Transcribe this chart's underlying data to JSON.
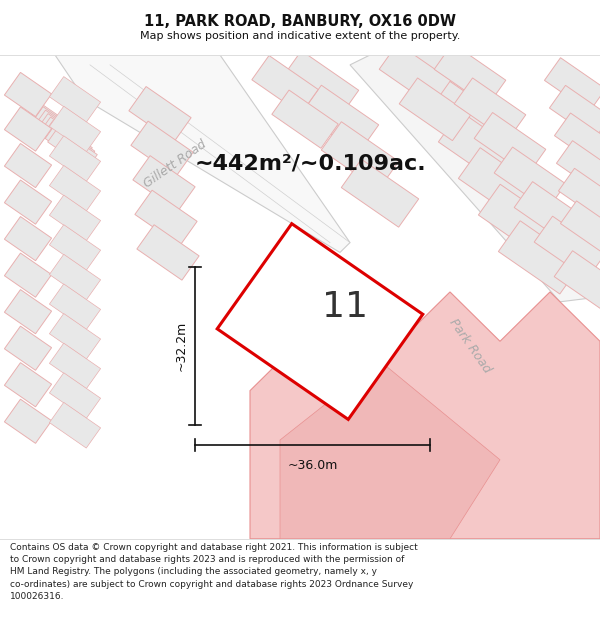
{
  "title": "11, PARK ROAD, BANBURY, OX16 0DW",
  "subtitle": "Map shows position and indicative extent of the property.",
  "area_label": "~442m²/~0.109ac.",
  "dim_width": "~36.0m",
  "dim_height": "~32.2m",
  "plot_number": "11",
  "road_label1": "Gillett Road",
  "road_label2": "Park Road",
  "copyright": "Contains OS data © Crown copyright and database right 2021. This information is subject\nto Crown copyright and database rights 2023 and is reproduced with the permission of\nHM Land Registry. The polygons (including the associated geometry, namely x, y\nco-ordinates) are subject to Crown copyright and database rights 2023 Ordnance Survey\n100026316.",
  "bg_color": "#ffffff",
  "building_fill": "#e8e8e8",
  "building_edge": "#e8b0b0",
  "building_edge_dark": "#c0c0c0",
  "plot_stroke": "#dd0000",
  "pink_fill": "#f5c8c8",
  "pink_edge": "#e89090",
  "road_color": "#b0b0b0",
  "title_color": "#111111",
  "dim_color": "#222222"
}
